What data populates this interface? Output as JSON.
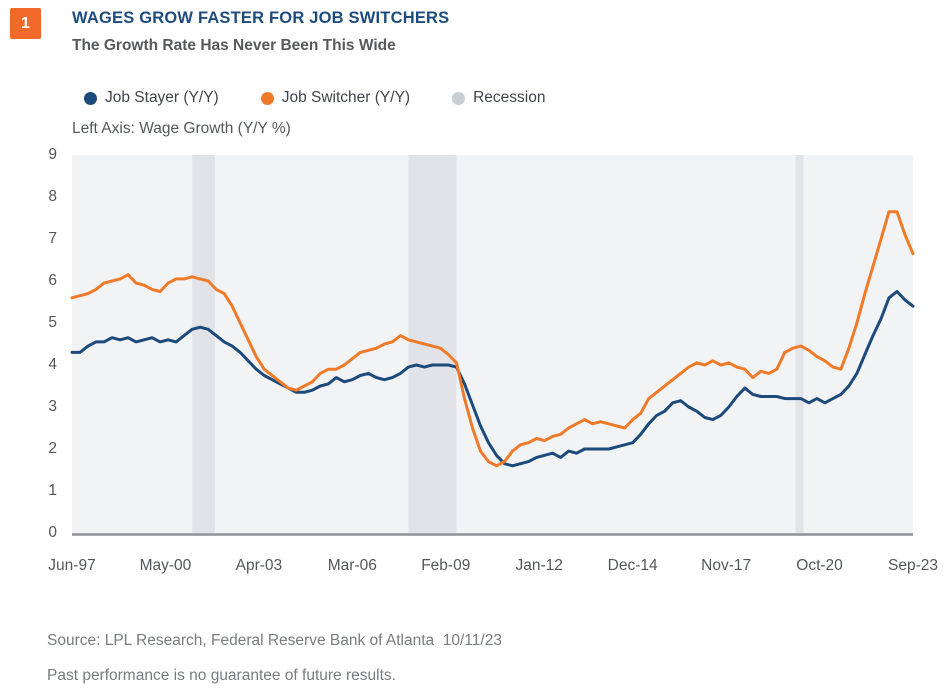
{
  "figure_badge": "1",
  "header": {
    "title": "WAGES GROW FASTER FOR JOB SWITCHERS",
    "subtitle": "The Growth Rate Has Never Been This Wide",
    "title_color": "#1d4c7c",
    "subtitle_color": "#58595b"
  },
  "legend": [
    {
      "label": "Job Stayer (Y/Y)",
      "color": "#1c4a7a"
    },
    {
      "label": "Job Switcher (Y/Y)",
      "color": "#ef7b2a"
    },
    {
      "label": "Recession",
      "color": "#c9cdd4"
    }
  ],
  "axis_note": "Left Axis: Wage Growth (Y/Y %)",
  "footer": {
    "source": "Source: LPL Research, Federal Reserve Bank of Atlanta  10/11/23",
    "disclaimer": "Past performance is no guarantee of future results."
  },
  "chart_data": {
    "type": "line",
    "title": "Wage Growth (Y/Y %), Job Stayers vs Job Switchers",
    "x_start": "Jun-1997",
    "x_end": "Sep-2023",
    "interval_months": 3,
    "total_months": 315,
    "x_tick_labels": [
      "Jun-97",
      "May-00",
      "Apr-03",
      "Mar-06",
      "Feb-09",
      "Jan-12",
      "Dec-14",
      "Nov-17",
      "Oct-20",
      "Sep-23"
    ],
    "x_tick_months": [
      0,
      35,
      70,
      105,
      140,
      175,
      210,
      245,
      280,
      315
    ],
    "y_ticks": [
      0,
      1,
      2,
      3,
      4,
      5,
      6,
      7,
      8,
      9
    ],
    "ylim": [
      0,
      9
    ],
    "grid": false,
    "legend_position": "top-left",
    "plot_bg": "#f2f3f5",
    "recession_band_color": "#e2e3e9",
    "axis_line_color": "#8f9197",
    "recessions": [
      {
        "from": "Mar-01",
        "to": "Nov-01",
        "start_month": 45,
        "end_month": 53.5
      },
      {
        "from": "Dec-07",
        "to": "Jun-09",
        "start_month": 126,
        "end_month": 144
      },
      {
        "from": "Feb-20",
        "to": "Apr-20",
        "start_month": 271,
        "end_month": 274
      }
    ],
    "series": [
      {
        "name": "Job Stayer (Y/Y)",
        "color": "#1c4a7a",
        "values": [
          4.3,
          4.3,
          4.45,
          4.55,
          4.55,
          4.65,
          4.6,
          4.65,
          4.55,
          4.6,
          4.65,
          4.55,
          4.6,
          4.55,
          4.7,
          4.85,
          4.9,
          4.85,
          4.7,
          4.55,
          4.45,
          4.3,
          4.1,
          3.9,
          3.75,
          3.65,
          3.55,
          3.45,
          3.35,
          3.35,
          3.4,
          3.5,
          3.55,
          3.7,
          3.6,
          3.65,
          3.75,
          3.8,
          3.7,
          3.65,
          3.7,
          3.8,
          3.95,
          4.0,
          3.95,
          4.0,
          4.0,
          4.0,
          3.95,
          3.55,
          3.05,
          2.55,
          2.15,
          1.85,
          1.65,
          1.6,
          1.65,
          1.7,
          1.8,
          1.85,
          1.9,
          1.8,
          1.95,
          1.9,
          2.0,
          2.0,
          2.0,
          2.0,
          2.05,
          2.1,
          2.15,
          2.35,
          2.6,
          2.8,
          2.9,
          3.1,
          3.15,
          3.0,
          2.9,
          2.75,
          2.7,
          2.8,
          3.0,
          3.25,
          3.45,
          3.3,
          3.25,
          3.25,
          3.25,
          3.2,
          3.2,
          3.2,
          3.1,
          3.2,
          3.1,
          3.2,
          3.3,
          3.5,
          3.8,
          4.25,
          4.7,
          5.1,
          5.6,
          5.75,
          5.55,
          5.4
        ]
      },
      {
        "name": "Job Switcher (Y/Y)",
        "color": "#ef7b2a",
        "values": [
          5.6,
          5.65,
          5.7,
          5.8,
          5.95,
          6.0,
          6.05,
          6.15,
          5.95,
          5.9,
          5.8,
          5.75,
          5.95,
          6.05,
          6.05,
          6.1,
          6.05,
          6.0,
          5.8,
          5.7,
          5.4,
          5.0,
          4.6,
          4.2,
          3.9,
          3.75,
          3.6,
          3.45,
          3.4,
          3.5,
          3.6,
          3.8,
          3.9,
          3.9,
          4.0,
          4.15,
          4.3,
          4.35,
          4.4,
          4.5,
          4.55,
          4.7,
          4.6,
          4.55,
          4.5,
          4.45,
          4.4,
          4.25,
          4.05,
          3.2,
          2.5,
          1.95,
          1.7,
          1.6,
          1.7,
          1.95,
          2.1,
          2.15,
          2.25,
          2.2,
          2.3,
          2.35,
          2.5,
          2.6,
          2.7,
          2.6,
          2.65,
          2.6,
          2.55,
          2.5,
          2.7,
          2.85,
          3.2,
          3.35,
          3.5,
          3.65,
          3.8,
          3.95,
          4.05,
          4.0,
          4.1,
          4.0,
          4.05,
          3.95,
          3.9,
          3.7,
          3.85,
          3.8,
          3.9,
          4.3,
          4.4,
          4.45,
          4.35,
          4.2,
          4.1,
          3.95,
          3.9,
          4.4,
          5.0,
          5.7,
          6.35,
          7.0,
          7.65,
          7.65,
          7.1,
          6.65
        ]
      }
    ],
    "badge_color": "#f2692c"
  }
}
